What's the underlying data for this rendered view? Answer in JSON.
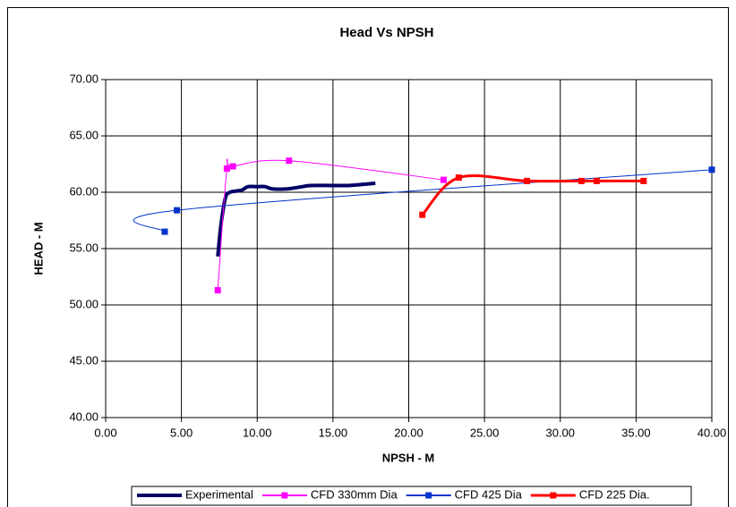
{
  "chart_data": {
    "type": "line",
    "title": "Head Vs NPSH",
    "x_label": "NPSH - M",
    "y_label": "HEAD - M",
    "xlim": [
      0,
      40
    ],
    "ylim": [
      40,
      70
    ],
    "xticks": [
      {
        "value": 0,
        "label": "0.00"
      },
      {
        "value": 5,
        "label": "5.00"
      },
      {
        "value": 10,
        "label": "10.00"
      },
      {
        "value": 15,
        "label": "15.00"
      },
      {
        "value": 20,
        "label": "20.00"
      },
      {
        "value": 25,
        "label": "25.00"
      },
      {
        "value": 30,
        "label": "30.00"
      },
      {
        "value": 35,
        "label": "35.00"
      },
      {
        "value": 40,
        "label": "40.00"
      }
    ],
    "yticks": [
      {
        "value": 40,
        "label": "40.00"
      },
      {
        "value": 45,
        "label": "45.00"
      },
      {
        "value": 50,
        "label": "50.00"
      },
      {
        "value": 55,
        "label": "55.00"
      },
      {
        "value": 60,
        "label": "60.00"
      },
      {
        "value": 65,
        "label": "65.00"
      },
      {
        "value": 70,
        "label": "70.00"
      }
    ],
    "grid": true,
    "legend": "bottom",
    "series": [
      {
        "name": "Experimental",
        "color": "#000066",
        "width": 4,
        "markers": false,
        "x": [
          7.4,
          7.6,
          7.9,
          8.2,
          8.6,
          9.0,
          9.4,
          10.0,
          10.5,
          11.0,
          12.0,
          13.0,
          13.5,
          15.0,
          16.0,
          17.0,
          17.8
        ],
        "values": [
          54.3,
          57.0,
          59.5,
          60.0,
          60.1,
          60.2,
          60.5,
          60.5,
          60.5,
          60.3,
          60.3,
          60.5,
          60.6,
          60.6,
          60.6,
          60.7,
          60.8
        ]
      },
      {
        "name": "CFD 330mm Dia",
        "color": "#ff00ff",
        "width": 1,
        "markers": true,
        "x": [
          7.4,
          8.0,
          8.4,
          12.1,
          22.3
        ],
        "values": [
          51.3,
          62.1,
          62.3,
          62.8,
          61.1
        ]
      },
      {
        "name": "CFD 425 Dia",
        "color": "#0033cc",
        "width": 1,
        "markers": true,
        "x": [
          3.9,
          4.7,
          40.0
        ],
        "values": [
          56.5,
          58.4,
          62.0
        ]
      },
      {
        "name": "CFD 225 Dia.",
        "color": "#ff0000",
        "width": 3,
        "markers": true,
        "x": [
          20.9,
          23.3,
          27.8,
          31.4,
          32.4,
          35.5
        ],
        "values": [
          58.0,
          61.3,
          61.0,
          61.0,
          61.0,
          61.0
        ]
      }
    ]
  }
}
